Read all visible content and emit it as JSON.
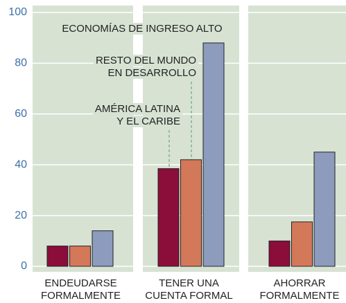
{
  "chart_data": {
    "type": "bar",
    "categories": [
      [
        "ENDEUDARSE",
        "FORMALMENTE"
      ],
      [
        "TENER UNA",
        "CUENTA FORMAL"
      ],
      [
        "AHORRAR",
        "FORMALMENTE"
      ]
    ],
    "series": [
      {
        "name": [
          "AMÉRICA LATINA",
          "Y EL CARIBE"
        ],
        "color": "#8b0d3a",
        "values": [
          8,
          38.5,
          10
        ]
      },
      {
        "name": [
          "RESTO DEL MUNDO",
          "EN DESARROLLO"
        ],
        "color": "#d4785a",
        "values": [
          8,
          42,
          17.5
        ]
      },
      {
        "name": [
          "ECONOMÍAS DE INGRESO ALTO"
        ],
        "color": "#8d9bbd",
        "values": [
          14,
          88,
          45
        ]
      }
    ],
    "ylim": [
      0,
      100
    ],
    "yticks": [
      0,
      20,
      40,
      60,
      80,
      100
    ],
    "grid": true
  }
}
